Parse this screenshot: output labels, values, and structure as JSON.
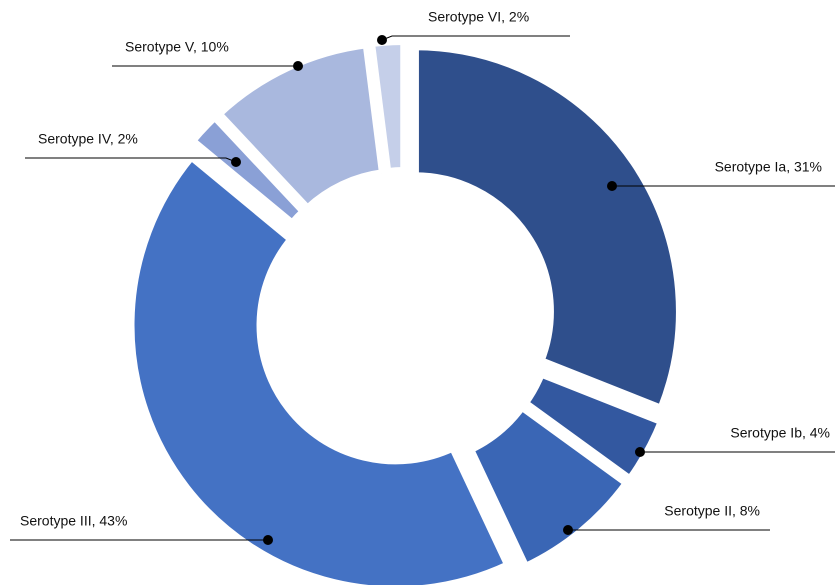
{
  "chart_data": {
    "type": "donut",
    "values": [
      31,
      4,
      8,
      43,
      2,
      10,
      2
    ],
    "value_labels": [
      "Serotype Ia, 31%",
      "Serotype Ib, 4%",
      "Serotype II, 8%",
      "Serotype III, 43%",
      "Serotype IV, 2%",
      "Serotype V, 10%",
      "Serotype VI, 2%"
    ],
    "colors": [
      "#2f4f8c",
      "#3358a0",
      "#3a66b5",
      "#4472c4",
      "#8aa0d6",
      "#a9b8de",
      "#c5cfe9"
    ]
  }
}
